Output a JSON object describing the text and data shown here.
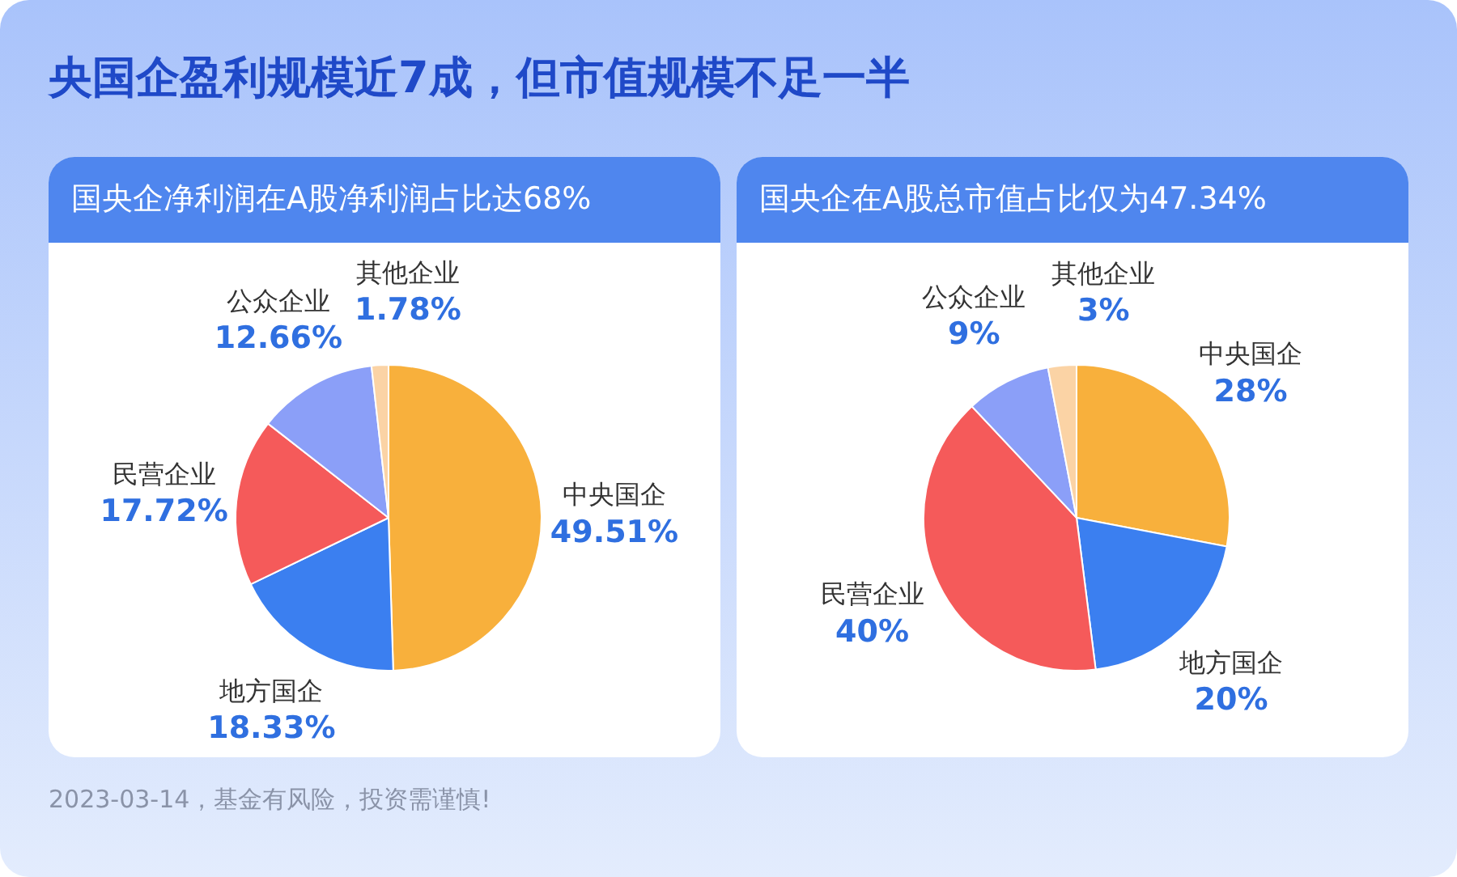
{
  "chart_data": [
    {
      "type": "pie",
      "title": "央国企盈利规模近7成，但市值规模不足一半",
      "subtitle": "国央企净利润在A股净利润占比达68%",
      "categories": [
        "中央国企",
        "地方国企",
        "民营企业",
        "公众企业",
        "其他企业"
      ],
      "values": [
        49.51,
        18.33,
        17.72,
        12.66,
        1.78
      ],
      "colors": [
        "#f8b03c",
        "#3b7ff0",
        "#f55a5a",
        "#8b9ff8",
        "#fbd3a5"
      ],
      "value_labels": [
        "49.51%",
        "18.33%",
        "17.72%",
        "12.66%",
        "1.78%"
      ]
    },
    {
      "type": "pie",
      "subtitle": "国央企在A股总市值占比仅为47.34%",
      "categories": [
        "中央国企",
        "地方国企",
        "民营企业",
        "公众企业",
        "其他企业"
      ],
      "values": [
        28,
        20,
        40,
        9,
        3
      ],
      "colors": [
        "#f8b03c",
        "#3b7ff0",
        "#f55a5a",
        "#8b9ff8",
        "#fbd3a5"
      ],
      "value_labels": [
        "28%",
        "20%",
        "40%",
        "9%",
        "3%"
      ],
      "annotations": [
        "2023-03-14，基金有风险，投资需谨慎!"
      ]
    }
  ]
}
